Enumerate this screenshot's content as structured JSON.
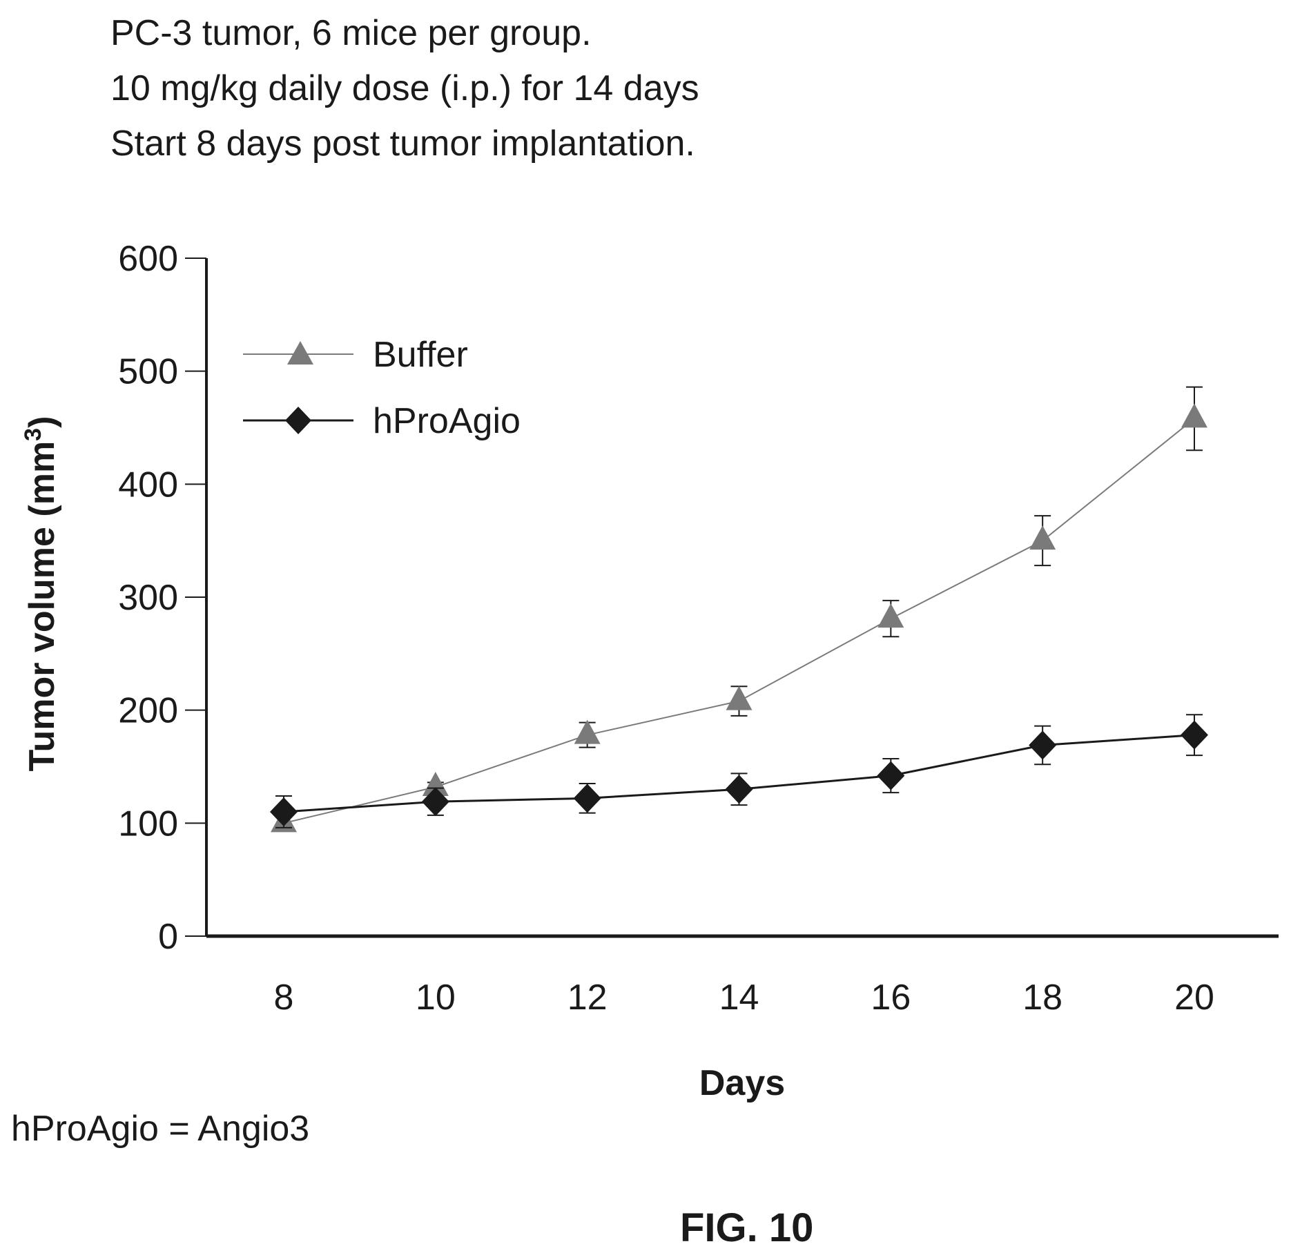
{
  "header_notes": [
    "PC-3 tumor, 6 mice per group.",
    "10 mg/kg daily dose (i.p.) for 14 days",
    "Start 8 days post tumor implantation."
  ],
  "footnote": "hProAgio = Angio3",
  "figure_label": "FIG. 10",
  "chart_data": {
    "type": "line",
    "xlabel": "Days",
    "ylabel": "Tumor volume (mm",
    "ylabel_superscript": "3",
    "ylabel_close": ")",
    "x": [
      8,
      10,
      12,
      14,
      16,
      18,
      20
    ],
    "x_ticks": [
      "8",
      "10",
      "12",
      "14",
      "16",
      "18",
      "20"
    ],
    "y_ticks": [
      "0",
      "100",
      "200",
      "300",
      "400",
      "500",
      "600"
    ],
    "ylim": [
      0,
      600
    ],
    "grid": false,
    "legend_position": "top-left",
    "series": [
      {
        "name": "Buffer",
        "marker": "triangle",
        "color": "#7a7a7a",
        "values": [
          100,
          132,
          178,
          208,
          281,
          350,
          458
        ],
        "errors": [
          0,
          4,
          11,
          13,
          16,
          22,
          28
        ]
      },
      {
        "name": "hProAgio",
        "marker": "diamond",
        "color": "#1a1a1a",
        "values": [
          110,
          119,
          122,
          130,
          142,
          169,
          178
        ],
        "errors": [
          14,
          12,
          13,
          14,
          15,
          17,
          18
        ]
      }
    ]
  }
}
